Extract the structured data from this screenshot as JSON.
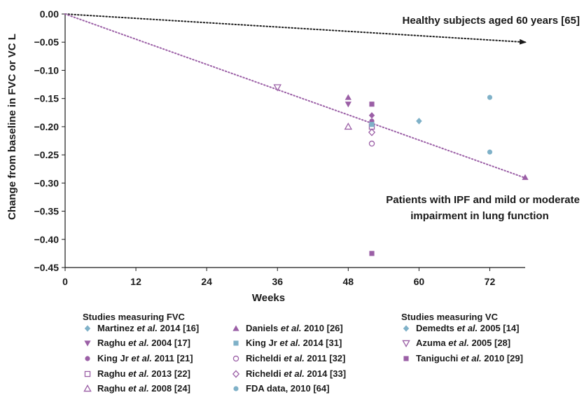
{
  "chart_data": {
    "type": "scatter",
    "xlabel": "Weeks",
    "ylabel": "Change from baseline in FVC or VC L",
    "xlim": [
      0,
      78
    ],
    "ylim": [
      -0.45,
      0
    ],
    "xticks": [
      0,
      12,
      24,
      36,
      48,
      60,
      72
    ],
    "yticks": [
      0.0,
      -0.05,
      -0.1,
      -0.15,
      -0.2,
      -0.25,
      -0.3,
      -0.35,
      -0.4,
      -0.45
    ],
    "ytick_labels": [
      "0.00",
      "−0.05",
      "−0.10",
      "−0.15",
      "−0.20",
      "−0.25",
      "−0.30",
      "−0.35",
      "−0.40",
      "−0.45"
    ],
    "grid": false,
    "trend_lines": [
      {
        "label": "Healthy subjects aged 60 years [65]",
        "x": [
          0,
          78
        ],
        "y": [
          0,
          -0.05
        ],
        "style": "dotted",
        "color": "#1a1a1a"
      },
      {
        "label": "Patients with IPF and mild or moderate impairment in lung function",
        "x": [
          0,
          78
        ],
        "y": [
          0,
          -0.29
        ],
        "style": "dotted",
        "color": "#9b5fa6"
      }
    ],
    "annotations": [
      {
        "text": "Healthy subjects aged 60 years [65]"
      },
      {
        "text": "Patients with IPF and mild or moderate"
      },
      {
        "text": "impairment in lung function"
      }
    ],
    "legend_groups": [
      {
        "title": "Studies measuring FVC"
      },
      {
        "title": "Studies measuring VC"
      }
    ],
    "series": [
      {
        "name_main": "Martinez ",
        "name_italic": "et al.",
        "name_tail": " 2014 [16]",
        "marker": "diamond",
        "filled": true,
        "color": "#7fb1c8",
        "points": [
          [
            60,
            -0.19
          ]
        ]
      },
      {
        "name_main": "Raghu ",
        "name_italic": "et al.",
        "name_tail": " 2004 [17]",
        "marker": "triangle-down",
        "filled": true,
        "color": "#9b5fa6",
        "points": [
          [
            48,
            -0.16
          ]
        ]
      },
      {
        "name_main": "King Jr ",
        "name_italic": "et al.",
        "name_tail": " 2011 [21]",
        "marker": "circle",
        "filled": true,
        "color": "#9b5fa6",
        "points": [
          [
            52,
            -0.19
          ]
        ]
      },
      {
        "name_main": "Raghu ",
        "name_italic": "et al.",
        "name_tail": " 2013 [22]",
        "marker": "square",
        "filled": false,
        "color": "#9b5fa6",
        "points": [
          [
            52,
            -0.2
          ]
        ]
      },
      {
        "name_main": "Raghu ",
        "name_italic": "et al.",
        "name_tail": " 2008 [24]",
        "marker": "triangle-up",
        "filled": false,
        "color": "#9b5fa6",
        "points": [
          [
            48,
            -0.2
          ]
        ]
      },
      {
        "name_main": "Daniels ",
        "name_italic": "et al.",
        "name_tail": " 2010 [26]",
        "marker": "triangle-up",
        "filled": true,
        "color": "#9b5fa6",
        "points": [
          [
            48,
            -0.148
          ],
          [
            78,
            -0.29
          ]
        ]
      },
      {
        "name_main": "King Jr ",
        "name_italic": "et al.",
        "name_tail": " 2014 [31]",
        "marker": "square",
        "filled": true,
        "color": "#7fb1c8",
        "points": [
          [
            52,
            -0.196
          ]
        ]
      },
      {
        "name_main": "Richeldi ",
        "name_italic": "et al.",
        "name_tail": " 2011 [32]",
        "marker": "circle",
        "filled": false,
        "color": "#9b5fa6",
        "points": [
          [
            52,
            -0.23
          ]
        ]
      },
      {
        "name_main": "Richeldi ",
        "name_italic": "et al.",
        "name_tail": " 2014 [33]",
        "marker": "diamond",
        "filled": false,
        "color": "#9b5fa6",
        "points": [
          [
            52,
            -0.21
          ]
        ]
      },
      {
        "name_main": "FDA data, 2010 [64]",
        "name_italic": "",
        "name_tail": "",
        "marker": "circle",
        "filled": true,
        "color": "#7fb1c8",
        "points": [
          [
            72,
            -0.148
          ],
          [
            72,
            -0.245
          ]
        ]
      },
      {
        "name_main": "Demedts ",
        "name_italic": "et al.",
        "name_tail": " 2005 [14]",
        "marker": "diamond",
        "filled": true,
        "color": "#7fb1c8",
        "points": [
          [
            60,
            -0.19
          ]
        ]
      },
      {
        "name_main": "Azuma ",
        "name_italic": "et al.",
        "name_tail": " 2005 [28]",
        "marker": "triangle-down",
        "filled": false,
        "color": "#9b5fa6",
        "points": [
          [
            36,
            -0.13
          ]
        ]
      },
      {
        "name_main": "Taniguchi ",
        "name_italic": "et al.",
        "name_tail": " 2010 [29]",
        "marker": "square",
        "filled": true,
        "color": "#9b5fa6",
        "points": [
          [
            52,
            -0.16
          ],
          [
            52,
            -0.425
          ]
        ]
      },
      {
        "name_main": "",
        "name_italic": "",
        "name_tail": "",
        "marker": "diamond",
        "filled": true,
        "color": "#9b5fa6",
        "points": [
          [
            52,
            -0.18
          ]
        ]
      }
    ]
  }
}
